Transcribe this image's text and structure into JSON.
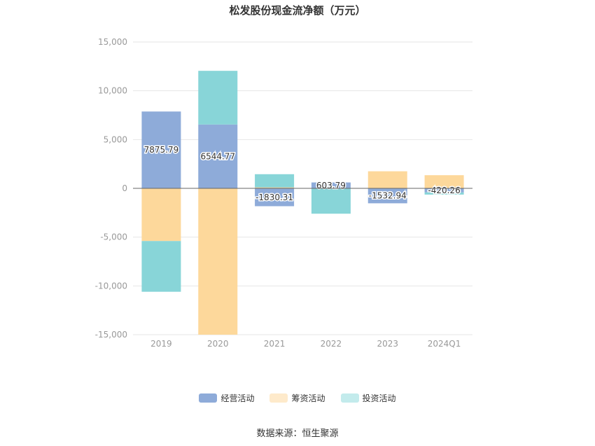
{
  "chart_data": {
    "type": "bar",
    "stacked": true,
    "title": "松发股份现金流净额（万元）",
    "categories": [
      "2019",
      "2020",
      "2021",
      "2022",
      "2023",
      "2024Q1"
    ],
    "ylim": [
      -15000,
      15000
    ],
    "yticks": [
      15000,
      10000,
      5000,
      0,
      -5000,
      -10000,
      -15000
    ],
    "ytick_labels": [
      "15,000",
      "10,000",
      "5,000",
      "0",
      "-5,000",
      "-10,000",
      "-15,000"
    ],
    "grid": true,
    "legend_position": "bottom",
    "series": [
      {
        "name": "经营活动",
        "color": "#8eabd9",
        "legend_color": "#8eabd9",
        "values": [
          7875.79,
          6544.77,
          -1830.31,
          603.79,
          -1532.94,
          -420.26
        ],
        "labels": [
          "7875.79",
          "6544.77",
          "-1830.31",
          "603.79",
          "-1532.94",
          "-420.26"
        ]
      },
      {
        "name": "筹资活动",
        "color": "#fdd89b",
        "legend_color": "#feeacb",
        "values": [
          -5400,
          -15000,
          100,
          0,
          1750,
          1350
        ]
      },
      {
        "name": "投资活动",
        "color": "#88d5d8",
        "legend_color": "#c3ebec",
        "values": [
          -5200,
          5500,
          1350,
          -2600,
          0,
          -220
        ]
      }
    ]
  },
  "source": "数据来源：恒生聚源"
}
